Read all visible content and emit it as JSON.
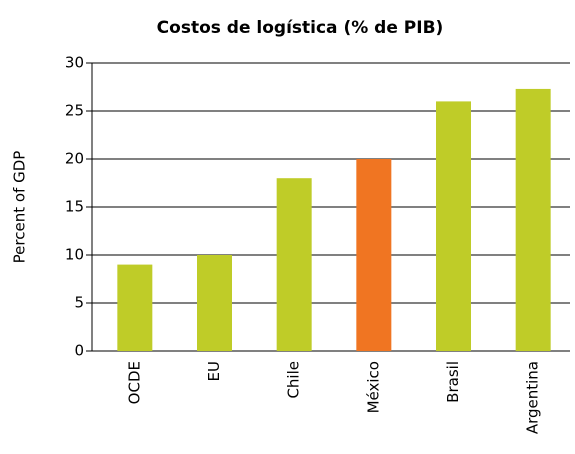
{
  "chart_data": {
    "type": "bar",
    "title": "Costos de logística (% de PIB)",
    "y_label": "Percent of GDP",
    "categories": [
      "OCDE",
      "EU",
      "Chile",
      "México",
      "Brasil",
      "Argentina"
    ],
    "values": [
      9,
      10,
      18,
      20,
      26,
      27.3
    ],
    "colors": [
      "#bfcc28",
      "#bfcc28",
      "#bfcc28",
      "#f07522",
      "#bfcc28",
      "#bfcc28"
    ],
    "ylim": [
      0,
      30
    ],
    "yticks": [
      0,
      5,
      10,
      15,
      20,
      25,
      30
    ],
    "grid": true
  }
}
